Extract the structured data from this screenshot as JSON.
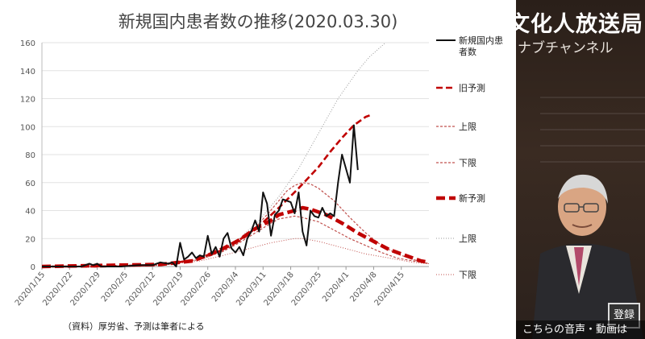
{
  "video_overlay": {
    "channel_title": "文化人放送局",
    "channel_subtitle": "ナブチャンネル",
    "subscribe_label": "登録",
    "caption": "こちらの音声・動画は"
  },
  "colors": {
    "actual": "#111111",
    "forecast": "#c00000",
    "forecast_band": "#c0504d",
    "grid": "#e2e2e2"
  },
  "chart_data": {
    "type": "line",
    "title": "新規国内患者数の推移(2020.03.30)",
    "source_note": "（資料）厚労省、予測は筆者による",
    "xlabel": "",
    "ylabel": "",
    "ylim": [
      0,
      160
    ],
    "y_ticks": [
      0,
      20,
      40,
      60,
      80,
      100,
      120,
      140,
      160
    ],
    "x_ticks": [
      "2020/1/15",
      "2020/1/22",
      "2020/1/29",
      "2020/2/5",
      "2020/2/12",
      "2020/2/19",
      "2020/2/26",
      "2020/3/4",
      "2020/3/11",
      "2020/3/18",
      "2020/3/25",
      "2020/4/1",
      "2020/4/8",
      "2020/4/15"
    ],
    "x_range_days": [
      0,
      98
    ],
    "grid": true,
    "legend_position": "right",
    "series": [
      {
        "name": "新規国内患者数",
        "style": "actual",
        "points": [
          [
            0,
            0
          ],
          [
            5,
            0
          ],
          [
            10,
            0
          ],
          [
            12,
            2
          ],
          [
            13,
            1
          ],
          [
            14,
            2
          ],
          [
            15,
            0
          ],
          [
            20,
            0
          ],
          [
            25,
            1
          ],
          [
            28,
            1
          ],
          [
            30,
            3
          ],
          [
            32,
            2
          ],
          [
            33,
            3
          ],
          [
            34,
            0
          ],
          [
            35,
            17
          ],
          [
            36,
            5
          ],
          [
            37,
            7
          ],
          [
            38,
            10
          ],
          [
            39,
            6
          ],
          [
            40,
            8
          ],
          [
            41,
            7
          ],
          [
            42,
            22
          ],
          [
            43,
            9
          ],
          [
            44,
            14
          ],
          [
            45,
            7
          ],
          [
            46,
            20
          ],
          [
            47,
            24
          ],
          [
            48,
            13
          ],
          [
            49,
            10
          ],
          [
            50,
            14
          ],
          [
            51,
            8
          ],
          [
            52,
            20
          ],
          [
            53,
            25
          ],
          [
            54,
            33
          ],
          [
            55,
            25
          ],
          [
            56,
            53
          ],
          [
            57,
            45
          ],
          [
            58,
            22
          ],
          [
            59,
            37
          ],
          [
            60,
            40
          ],
          [
            61,
            48
          ],
          [
            62,
            47
          ],
          [
            63,
            46
          ],
          [
            64,
            38
          ],
          [
            65,
            53
          ],
          [
            66,
            25
          ],
          [
            67,
            15
          ],
          [
            68,
            40
          ],
          [
            69,
            36
          ],
          [
            70,
            35
          ],
          [
            71,
            42
          ],
          [
            72,
            36
          ],
          [
            73,
            38
          ],
          [
            74,
            36
          ],
          [
            75,
            60
          ],
          [
            76,
            80
          ],
          [
            77,
            70
          ],
          [
            78,
            60
          ],
          [
            79,
            101
          ],
          [
            80,
            69
          ]
        ]
      },
      {
        "name": "旧予測",
        "style": "old_forecast",
        "points": [
          [
            0,
            0
          ],
          [
            15,
            0
          ],
          [
            30,
            1.2
          ],
          [
            38,
            4.5
          ],
          [
            45,
            11
          ],
          [
            50,
            19
          ],
          [
            55,
            29
          ],
          [
            60,
            42
          ],
          [
            65,
            56
          ],
          [
            70,
            71
          ],
          [
            73,
            82
          ],
          [
            76,
            92
          ],
          [
            79,
            101
          ],
          [
            82,
            107
          ],
          [
            83,
            108
          ]
        ]
      },
      {
        "name": "上限",
        "style": "old_upper",
        "points": [
          [
            0,
            0
          ],
          [
            30,
            1
          ],
          [
            40,
            5
          ],
          [
            46,
            11
          ],
          [
            50,
            18
          ],
          [
            54,
            28
          ],
          [
            57,
            37
          ],
          [
            60,
            47
          ],
          [
            62,
            54
          ],
          [
            64,
            58
          ],
          [
            66,
            60
          ],
          [
            68,
            59
          ],
          [
            70,
            56
          ],
          [
            74,
            47
          ],
          [
            78,
            35
          ],
          [
            82,
            24
          ],
          [
            86,
            15
          ],
          [
            90,
            9
          ],
          [
            94,
            5
          ],
          [
            98,
            2
          ]
        ]
      },
      {
        "name": "下限",
        "style": "old_lower",
        "points": [
          [
            0,
            0
          ],
          [
            30,
            1
          ],
          [
            40,
            5
          ],
          [
            46,
            11
          ],
          [
            50,
            17
          ],
          [
            54,
            24
          ],
          [
            58,
            31
          ],
          [
            60,
            34
          ],
          [
            62,
            35
          ],
          [
            64,
            36
          ],
          [
            66,
            35
          ],
          [
            70,
            32
          ],
          [
            74,
            26
          ],
          [
            78,
            20
          ],
          [
            82,
            15
          ],
          [
            86,
            10
          ],
          [
            90,
            6
          ],
          [
            94,
            4
          ],
          [
            98,
            2
          ]
        ]
      },
      {
        "name": "新予測",
        "style": "new_forecast",
        "points": [
          [
            0,
            0
          ],
          [
            30,
            1.5
          ],
          [
            38,
            4
          ],
          [
            42,
            8
          ],
          [
            46,
            13
          ],
          [
            50,
            19
          ],
          [
            54,
            27
          ],
          [
            58,
            33
          ],
          [
            60,
            37
          ],
          [
            64,
            40
          ],
          [
            66,
            42
          ],
          [
            68,
            41
          ],
          [
            72,
            37
          ],
          [
            76,
            31
          ],
          [
            80,
            24
          ],
          [
            84,
            18
          ],
          [
            88,
            12
          ],
          [
            92,
            8
          ],
          [
            96,
            4
          ],
          [
            98,
            3
          ]
        ]
      },
      {
        "name": "上限",
        "style": "new_upper",
        "points": [
          [
            0,
            0
          ],
          [
            30,
            1
          ],
          [
            40,
            5
          ],
          [
            46,
            12
          ],
          [
            50,
            20
          ],
          [
            55,
            33
          ],
          [
            60,
            50
          ],
          [
            65,
            70
          ],
          [
            70,
            95
          ],
          [
            75,
            120
          ],
          [
            80,
            140
          ],
          [
            83,
            150
          ],
          [
            87,
            160
          ]
        ]
      },
      {
        "name": "下限",
        "style": "new_lower",
        "points": [
          [
            0,
            0
          ],
          [
            30,
            1
          ],
          [
            40,
            4
          ],
          [
            46,
            8
          ],
          [
            50,
            11
          ],
          [
            54,
            14
          ],
          [
            58,
            17
          ],
          [
            62,
            19
          ],
          [
            64,
            20
          ],
          [
            66,
            20
          ],
          [
            70,
            18
          ],
          [
            74,
            15
          ],
          [
            78,
            12
          ],
          [
            82,
            9
          ],
          [
            86,
            7
          ],
          [
            90,
            5
          ],
          [
            94,
            3
          ],
          [
            98,
            2
          ]
        ]
      }
    ]
  }
}
